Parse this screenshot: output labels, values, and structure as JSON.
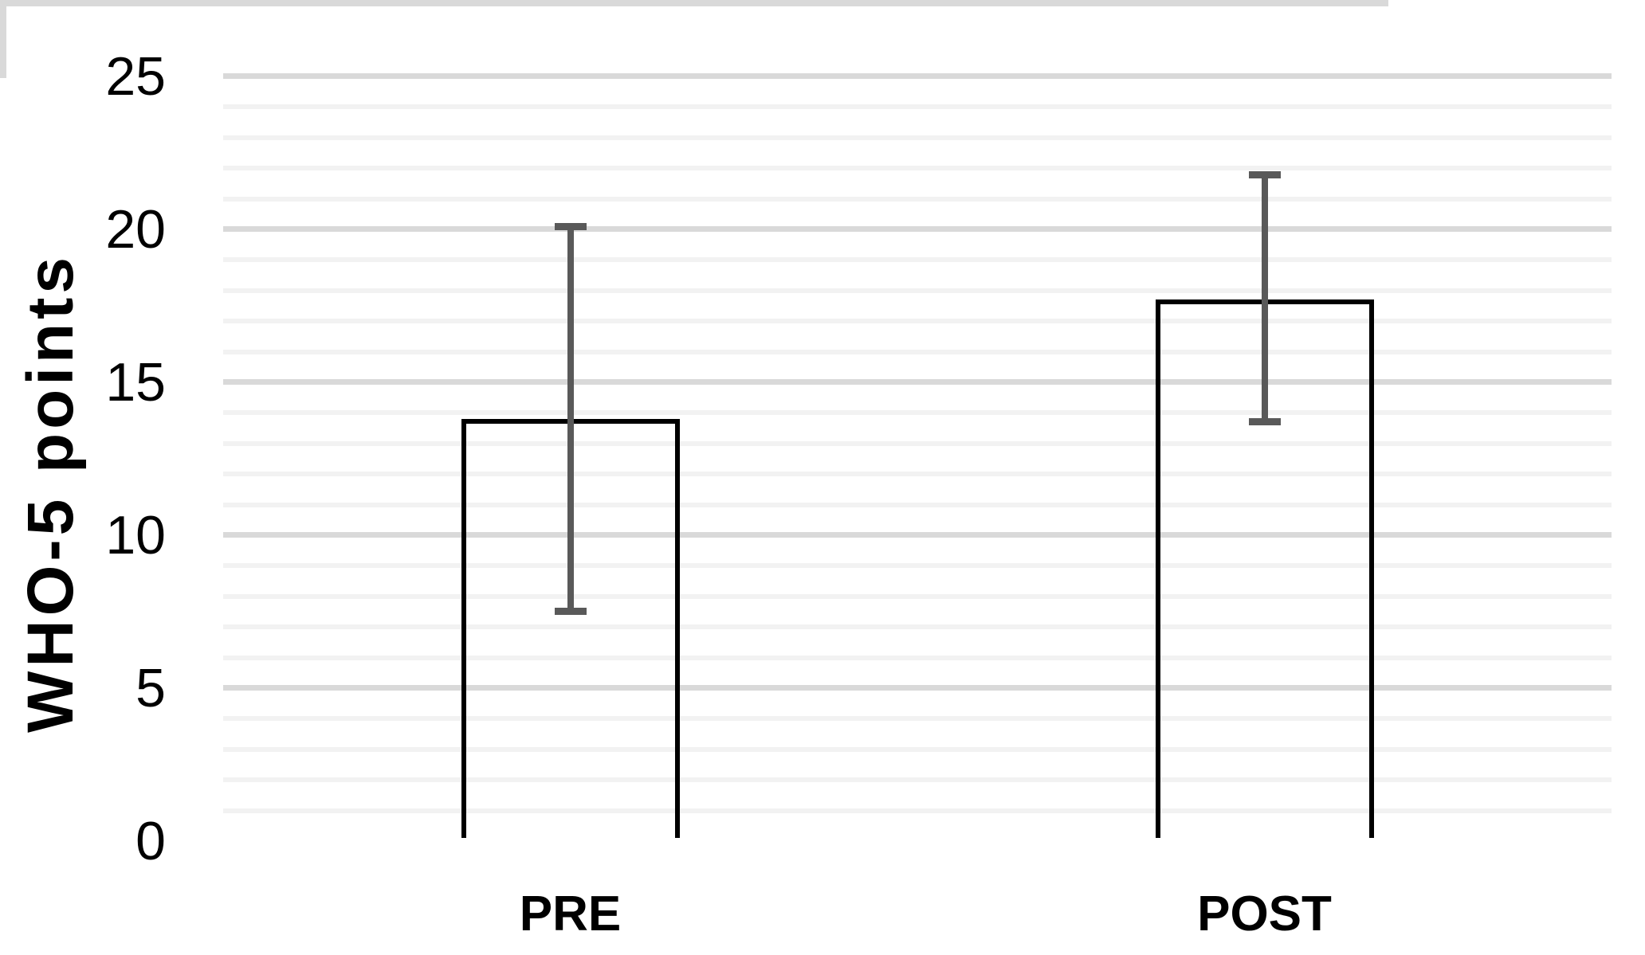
{
  "chart_data": {
    "type": "bar",
    "title": "",
    "categories": [
      "PRE",
      "POST"
    ],
    "values": [
      13.8,
      17.7
    ],
    "error_bars": {
      "lower": [
        7.5,
        13.7
      ],
      "upper": [
        20.1,
        21.8
      ]
    },
    "ylabel": "WHO-5 points",
    "xlabel": "",
    "ylim": [
      0,
      25
    ],
    "yticks": [
      0,
      5,
      10,
      15,
      20,
      25
    ],
    "major_unit": 5,
    "minor_unit": 1,
    "grid": "horizontal major + minor",
    "legend": "none",
    "colors": {
      "bar_fill": "none",
      "bar_border": "#000000",
      "error_bar": "#595959",
      "major_gridline": "#d9d9d9",
      "minor_gridline": "#f2f2f2",
      "axis_line": "#d9d9d9",
      "text": "#000000"
    }
  }
}
